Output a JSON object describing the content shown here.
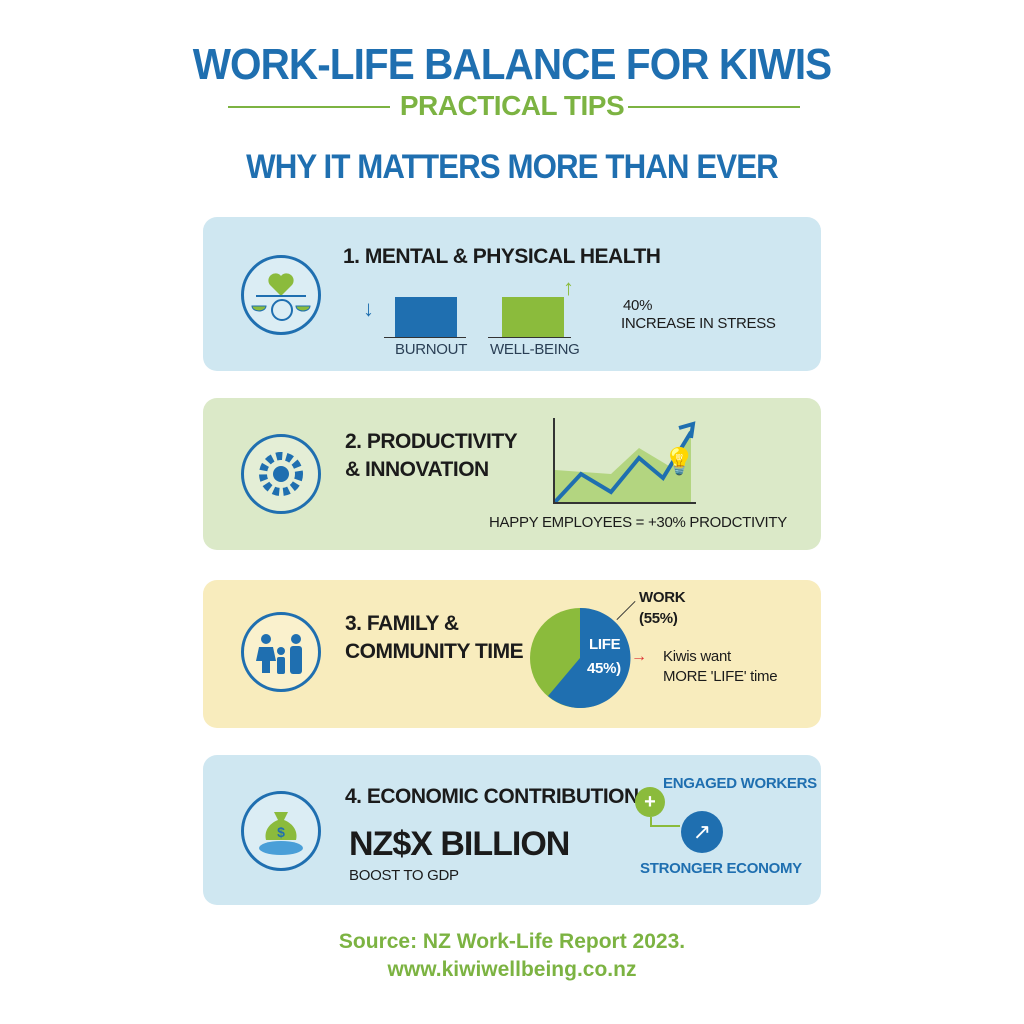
{
  "header": {
    "title": "WORK-LIFE BALANCE FOR KIWIS",
    "subtitle": "PRACTICAL TIPS",
    "section_heading": "WHY IT MATTERS MORE THAN EVER"
  },
  "cards": [
    {
      "title": "1. MENTAL & PHYSICAL HEALTH",
      "icon": "heart-brain-scales-icon",
      "bars": [
        {
          "label": "BURNOUT",
          "trend": "down",
          "color": "#1f6fb0"
        },
        {
          "label": "WELL-BEING",
          "trend": "up",
          "color": "#8bbb3c"
        }
      ],
      "stat": "40%",
      "stat_label": "INCREASE IN STRESS",
      "bg": "#cfe7f1"
    },
    {
      "title_line1": "2. PRODUCTIVITY",
      "title_line2": "& INNOVATION",
      "icon": "gear-icon",
      "caption": "HAPPY EMPLOYEES = +30% PRODCTIVITY",
      "bg": "#dbe9c8"
    },
    {
      "title_line1": "3. FAMILY &",
      "title_line2": "COMMUNITY TIME",
      "icon": "family-icon",
      "pie": {
        "work_label": "WORK",
        "work_value": "(55%)",
        "life_label": "LIFE",
        "life_value": "45%)",
        "work_pct": 55,
        "life_pct": 45
      },
      "note_line1": "Kiwis want",
      "note_line2": "MORE 'LIFE' time",
      "bg": "#f8ecbd"
    },
    {
      "title": "4. ECONOMIC CONTRIBUTION",
      "icon": "money-bag-icon",
      "amount": "NZ$X BILLION",
      "amount_label": "BOOST TO GDP",
      "engaged": "ENGAGED WORKERS",
      "stronger": "STRONGER ECONOMY",
      "bg": "#cfe7f1"
    }
  ],
  "footer": {
    "source": "Source: NZ Work-Life Report 2023.",
    "url": "www.kiwiwellbeing.co.nz"
  },
  "colors": {
    "blue": "#1f6fb0",
    "green": "#7cb342"
  }
}
